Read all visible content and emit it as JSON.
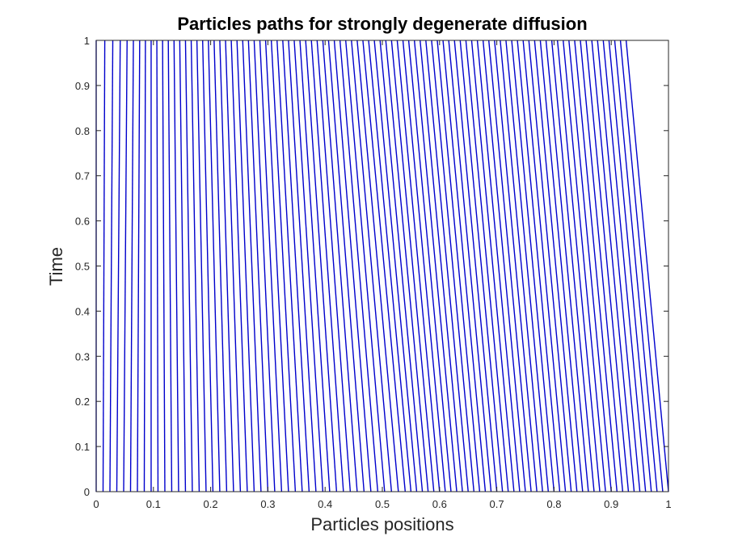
{
  "chart_data": {
    "type": "line",
    "title": "Particles paths for strongly degenerate diffusion",
    "xlabel": "Particles positions",
    "ylabel": "Time",
    "xlim": [
      0,
      1
    ],
    "ylim": [
      0,
      1
    ],
    "xticks": [
      "0",
      "0.1",
      "0.2",
      "0.3",
      "0.4",
      "0.5",
      "0.6",
      "0.7",
      "0.8",
      "0.9",
      "1"
    ],
    "yticks": [
      "0",
      "0.1",
      "0.2",
      "0.3",
      "0.4",
      "0.5",
      "0.6",
      "0.7",
      "0.8",
      "0.9",
      "1"
    ],
    "grid": false,
    "line_color": "#0000cc",
    "series_note_values": {
      "x_at_t0": [
        0.0,
        0.012,
        0.024,
        0.036,
        0.048,
        0.06,
        0.072,
        0.084,
        0.096,
        0.108,
        0.12,
        0.132,
        0.144,
        0.156,
        0.168,
        0.18,
        0.192,
        0.204,
        0.216,
        0.228,
        0.24,
        0.252,
        0.264,
        0.276,
        0.288,
        0.3,
        0.312,
        0.324,
        0.336,
        0.348,
        0.36,
        0.372,
        0.384,
        0.396,
        0.408,
        0.42,
        0.432,
        0.444,
        0.456,
        0.468,
        0.48,
        0.492,
        0.504,
        0.516,
        0.528,
        0.54,
        0.55,
        0.56,
        0.57,
        0.58,
        0.59,
        0.6,
        0.61,
        0.62,
        0.63,
        0.64,
        0.65,
        0.66,
        0.67,
        0.68,
        0.69,
        0.7,
        0.71,
        0.72,
        0.73,
        0.74,
        0.75,
        0.76,
        0.77,
        0.78,
        0.79,
        0.8,
        0.81,
        0.82,
        0.83,
        0.84,
        0.85,
        0.86,
        0.87,
        0.88,
        0.89,
        0.9,
        0.91,
        0.92,
        0.93,
        0.94,
        0.95,
        0.96,
        0.97,
        0.98,
        0.99,
        1.0
      ],
      "x_at_t1": [
        0.0,
        0.015,
        0.029,
        0.042,
        0.054,
        0.065,
        0.076,
        0.086,
        0.096,
        0.106,
        0.116,
        0.126,
        0.136,
        0.146,
        0.156,
        0.166,
        0.176,
        0.186,
        0.196,
        0.206,
        0.216,
        0.226,
        0.236,
        0.246,
        0.256,
        0.266,
        0.276,
        0.286,
        0.296,
        0.306,
        0.316,
        0.326,
        0.336,
        0.346,
        0.356,
        0.366,
        0.376,
        0.386,
        0.396,
        0.406,
        0.416,
        0.426,
        0.436,
        0.446,
        0.456,
        0.466,
        0.476,
        0.486,
        0.496,
        0.506,
        0.516,
        0.526,
        0.536,
        0.546,
        0.556,
        0.566,
        0.576,
        0.586,
        0.596,
        0.606,
        0.616,
        0.626,
        0.636,
        0.646,
        0.656,
        0.666,
        0.676,
        0.686,
        0.696,
        0.706,
        0.716,
        0.726,
        0.736,
        0.746,
        0.756,
        0.766,
        0.776,
        0.786,
        0.796,
        0.806,
        0.816,
        0.826,
        0.836,
        0.846,
        0.856,
        0.866,
        0.876,
        0.886,
        0.896,
        0.906,
        0.916,
        0.926
      ]
    }
  }
}
